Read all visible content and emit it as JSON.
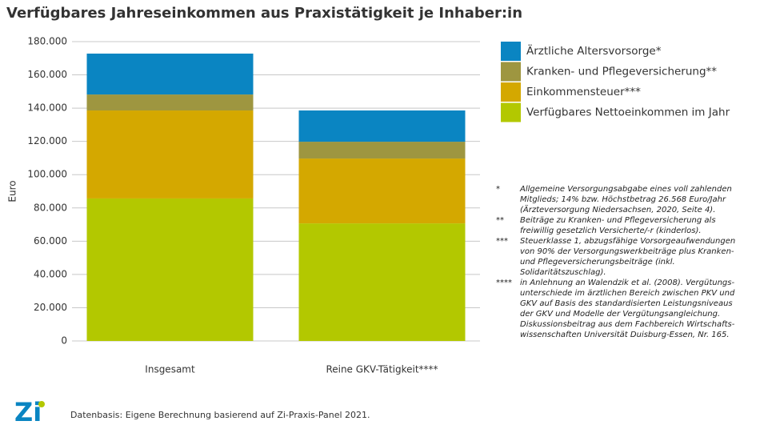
{
  "chart_data": {
    "type": "stacked_bar",
    "title": "Verfügbares Jahreseinkommen aus Praxistätigkeit je Inhaber:in",
    "ylabel": "Euro",
    "categories": [
      "Insgesamt",
      "Reine GKV-Tätigkeit****"
    ],
    "series": [
      {
        "name": "Ärztliche Altersvorsorge*",
        "color": "#0a85c2",
        "values": [
          24600,
          18800
        ]
      },
      {
        "name": "Kranken- und Pflegeversicherung**",
        "color": "#9e9640",
        "values": [
          9600,
          10100
        ]
      },
      {
        "name": "Einkommensteuer***",
        "color": "#d4a800",
        "values": [
          52900,
          39000
        ]
      },
      {
        "name": "Verfügbares Nettoeinkommen im Jahr",
        "color": "#b3c800",
        "values": [
          85700,
          70700
        ]
      }
    ],
    "ylim": [
      0,
      180000
    ],
    "yticks": [
      0,
      {
        "value": 20000,
        "label": "20.000"
      },
      {
        "value": 40000,
        "label": "40.000"
      },
      {
        "value": 60000,
        "label": "60.000"
      },
      {
        "value": 80000,
        "label": "80.000"
      },
      {
        "value": 100000,
        "label": "100.000"
      },
      {
        "value": 120000,
        "label": "120.000"
      },
      {
        "value": 140000,
        "label": "140.000"
      },
      {
        "value": 160000,
        "label": "160.000"
      },
      {
        "value": 180000,
        "label": "180.000"
      }
    ],
    "grid": true,
    "legend": "right"
  },
  "footnotes": [
    {
      "marker": "*",
      "lines": [
        "Allgemeine Versorgungsabgabe eines voll zahlenden",
        "Mitglieds; 14% bzw. Höchstbetrag 26.568 Euro/Jahr",
        "(Ärzteversorgung Niedersachsen, 2020, Seite 4)."
      ]
    },
    {
      "marker": "**",
      "lines": [
        "Beiträge zu Kranken- und Pflegeversicherung als",
        "freiwillig gesetzlich Versicherte/-r (kinderlos)."
      ]
    },
    {
      "marker": "***",
      "lines": [
        "Steuerklasse 1, abzugsfähige Vorsorgeaufwendungen",
        "von 90% der Versorgungswerkbeiträge plus Kranken-",
        "und Pflegeversicherungsbeiträge (inkl.",
        "Solidaritätszuschlag)."
      ]
    },
    {
      "marker": "****",
      "lines": [
        "in Anlehnung an Walendzik et al. (2008). Vergütungs-",
        "unterschiede im ärztlichen Bereich zwischen PKV und",
        "GKV auf Basis des standardisierten Leistungsniveaus",
        "der GKV und Modelle der Vergütungsangleichung.",
        "Diskussionsbeitrag aus dem Fachbereich Wirtschafts-",
        "wissenschaften Universität Duisburg-Essen, Nr. 165."
      ]
    }
  ],
  "logo": "Zi",
  "source": "Datenbasis: Eigene Berechnung basierend auf Zi-Praxis-Panel 2021."
}
